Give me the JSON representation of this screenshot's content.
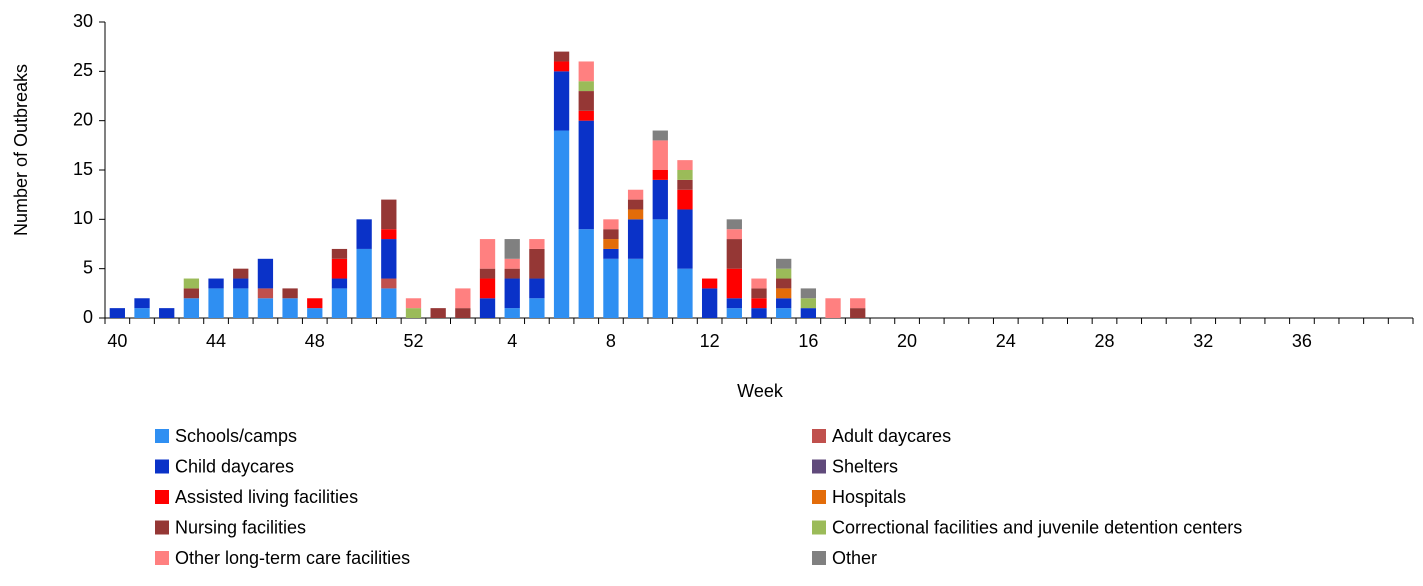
{
  "chart_data": {
    "type": "stacked-bar",
    "x_label": "Week",
    "y_label": "Number of Outbreaks",
    "categories": [
      "40",
      null,
      null,
      null,
      "44",
      null,
      null,
      null,
      "48",
      null,
      null,
      null,
      "52",
      null,
      null,
      null,
      "4",
      null,
      null,
      null,
      "8",
      null,
      null,
      null,
      "12",
      null,
      null,
      null,
      "16",
      null,
      null,
      null,
      "20",
      null,
      null,
      null,
      "24",
      null,
      null,
      null,
      "28",
      null,
      null,
      null,
      "32",
      null,
      null,
      null,
      "36",
      null,
      null,
      null,
      null
    ],
    "ylim": [
      0,
      30
    ],
    "yticks": [
      0,
      5,
      10,
      15,
      20,
      25,
      30
    ],
    "grid": false,
    "series": [
      {
        "name": "Schools/camps",
        "color": "#2f8ff2",
        "values": [
          0,
          1,
          0,
          2,
          3,
          3,
          2,
          2,
          1,
          3,
          7,
          3,
          0,
          0,
          0,
          0,
          1,
          2,
          19,
          9,
          6,
          6,
          10,
          5,
          0,
          1,
          0,
          1,
          0,
          0,
          0,
          0,
          0,
          0,
          0,
          0,
          0,
          0,
          0,
          0,
          0,
          0,
          0,
          0,
          0,
          0,
          0,
          0,
          0,
          0,
          0,
          0,
          0
        ]
      },
      {
        "name": "Adult daycares",
        "color": "#c0504d",
        "values": [
          0,
          0,
          0,
          0,
          0,
          0,
          1,
          0,
          0,
          0,
          0,
          1,
          0,
          0,
          0,
          0,
          0,
          0,
          0,
          0,
          0,
          0,
          0,
          0,
          0,
          0,
          0,
          0,
          0,
          0,
          0,
          0,
          0,
          0,
          0,
          0,
          0,
          0,
          0,
          0,
          0,
          0,
          0,
          0,
          0,
          0,
          0,
          0,
          0,
          0,
          0,
          0,
          0
        ]
      },
      {
        "name": "Child daycares",
        "color": "#0a32c8",
        "values": [
          1,
          1,
          1,
          0,
          1,
          1,
          3,
          0,
          0,
          1,
          3,
          4,
          0,
          0,
          0,
          2,
          3,
          2,
          6,
          11,
          1,
          4,
          4,
          6,
          3,
          1,
          1,
          1,
          1,
          0,
          0,
          0,
          0,
          0,
          0,
          0,
          0,
          0,
          0,
          0,
          0,
          0,
          0,
          0,
          0,
          0,
          0,
          0,
          0,
          0,
          0,
          0,
          0
        ]
      },
      {
        "name": "Shelters",
        "color": "#604a7b",
        "values": [
          0,
          0,
          0,
          0,
          0,
          0,
          0,
          0,
          0,
          0,
          0,
          0,
          0,
          0,
          0,
          0,
          0,
          0,
          0,
          0,
          0,
          0,
          0,
          0,
          0,
          0,
          0,
          0,
          0,
          0,
          0,
          0,
          0,
          0,
          0,
          0,
          0,
          0,
          0,
          0,
          0,
          0,
          0,
          0,
          0,
          0,
          0,
          0,
          0,
          0,
          0,
          0,
          0
        ]
      },
      {
        "name": "Assisted living facilities",
        "color": "#ff0000",
        "values": [
          0,
          0,
          0,
          0,
          0,
          0,
          0,
          0,
          1,
          2,
          0,
          1,
          0,
          0,
          0,
          2,
          0,
          0,
          1,
          1,
          0,
          0,
          1,
          2,
          1,
          3,
          1,
          0,
          0,
          0,
          0,
          0,
          0,
          0,
          0,
          0,
          0,
          0,
          0,
          0,
          0,
          0,
          0,
          0,
          0,
          0,
          0,
          0,
          0,
          0,
          0,
          0,
          0
        ]
      },
      {
        "name": "Hospitals",
        "color": "#e36c09",
        "values": [
          0,
          0,
          0,
          0,
          0,
          0,
          0,
          0,
          0,
          0,
          0,
          0,
          0,
          0,
          0,
          0,
          0,
          0,
          0,
          0,
          1,
          1,
          0,
          0,
          0,
          0,
          0,
          1,
          0,
          0,
          0,
          0,
          0,
          0,
          0,
          0,
          0,
          0,
          0,
          0,
          0,
          0,
          0,
          0,
          0,
          0,
          0,
          0,
          0,
          0,
          0,
          0,
          0
        ]
      },
      {
        "name": "Nursing facilities",
        "color": "#953735",
        "values": [
          0,
          0,
          0,
          1,
          0,
          1,
          0,
          1,
          0,
          1,
          0,
          3,
          0,
          1,
          1,
          1,
          1,
          3,
          1,
          2,
          1,
          1,
          0,
          1,
          0,
          3,
          1,
          1,
          0,
          0,
          1,
          0,
          0,
          0,
          0,
          0,
          0,
          0,
          0,
          0,
          0,
          0,
          0,
          0,
          0,
          0,
          0,
          0,
          0,
          0,
          0,
          0,
          0
        ]
      },
      {
        "name": "Correctional facilities and juvenile detention centers",
        "color": "#9bbb59",
        "values": [
          0,
          0,
          0,
          1,
          0,
          0,
          0,
          0,
          0,
          0,
          0,
          0,
          1,
          0,
          0,
          0,
          0,
          0,
          0,
          1,
          0,
          0,
          0,
          1,
          0,
          0,
          0,
          1,
          1,
          0,
          0,
          0,
          0,
          0,
          0,
          0,
          0,
          0,
          0,
          0,
          0,
          0,
          0,
          0,
          0,
          0,
          0,
          0,
          0,
          0,
          0,
          0,
          0
        ]
      },
      {
        "name": "Other long-term care facilities",
        "color": "#ff8080",
        "values": [
          0,
          0,
          0,
          0,
          0,
          0,
          0,
          0,
          0,
          0,
          0,
          0,
          1,
          0,
          2,
          3,
          1,
          1,
          0,
          2,
          1,
          1,
          3,
          1,
          0,
          1,
          1,
          0,
          0,
          2,
          1,
          0,
          0,
          0,
          0,
          0,
          0,
          0,
          0,
          0,
          0,
          0,
          0,
          0,
          0,
          0,
          0,
          0,
          0,
          0,
          0,
          0,
          0
        ]
      },
      {
        "name": "Other",
        "color": "#808080",
        "values": [
          0,
          0,
          0,
          0,
          0,
          0,
          0,
          0,
          0,
          0,
          0,
          0,
          0,
          0,
          0,
          0,
          2,
          0,
          0,
          0,
          0,
          0,
          1,
          0,
          0,
          1,
          0,
          1,
          1,
          0,
          0,
          0,
          0,
          0,
          0,
          0,
          0,
          0,
          0,
          0,
          0,
          0,
          0,
          0,
          0,
          0,
          0,
          0,
          0,
          0,
          0,
          0,
          0
        ]
      }
    ]
  }
}
